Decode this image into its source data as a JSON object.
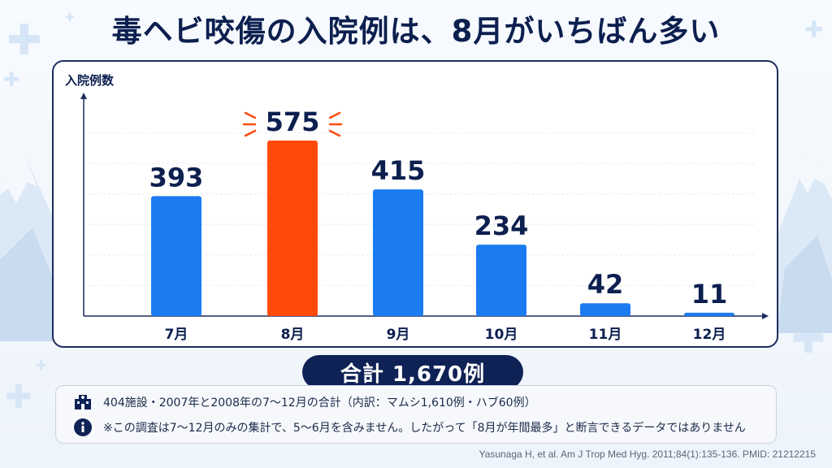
{
  "title": "毒ヘビ咬傷の入院例は、8月がいちばん多い",
  "chart_data": {
    "type": "bar",
    "ylabel": "入院例数",
    "categories": [
      "7月",
      "8月",
      "9月",
      "10月",
      "11月",
      "12月"
    ],
    "values": [
      393,
      575,
      415,
      234,
      42,
      11
    ],
    "value_labels": [
      "393",
      "575",
      "415",
      "234",
      "42",
      "11"
    ],
    "highlight": "8月",
    "colors": {
      "default": "#1a7cf0",
      "highlight": "#ff4a0c",
      "burst": "#ff4a0c"
    },
    "ylim": [
      0,
      700
    ],
    "grid": true
  },
  "total": {
    "label": "合計 1,670例"
  },
  "notes": [
    {
      "icon": "hospital-icon",
      "text": "404施設・2007年と2008年の7〜12月の合計（内訳：マムシ1,610例・ハブ60例）"
    },
    {
      "icon": "info-icon",
      "text": "※この調査は7〜12月のみの集計で、5〜6月を含みません。したがって「8月が年間最多」と断言できるデータではありません"
    }
  ],
  "citation": "Yasunaga H, et al. Am J Trop Med Hyg. 2011;84(1):135-136. PMID: 21212215"
}
